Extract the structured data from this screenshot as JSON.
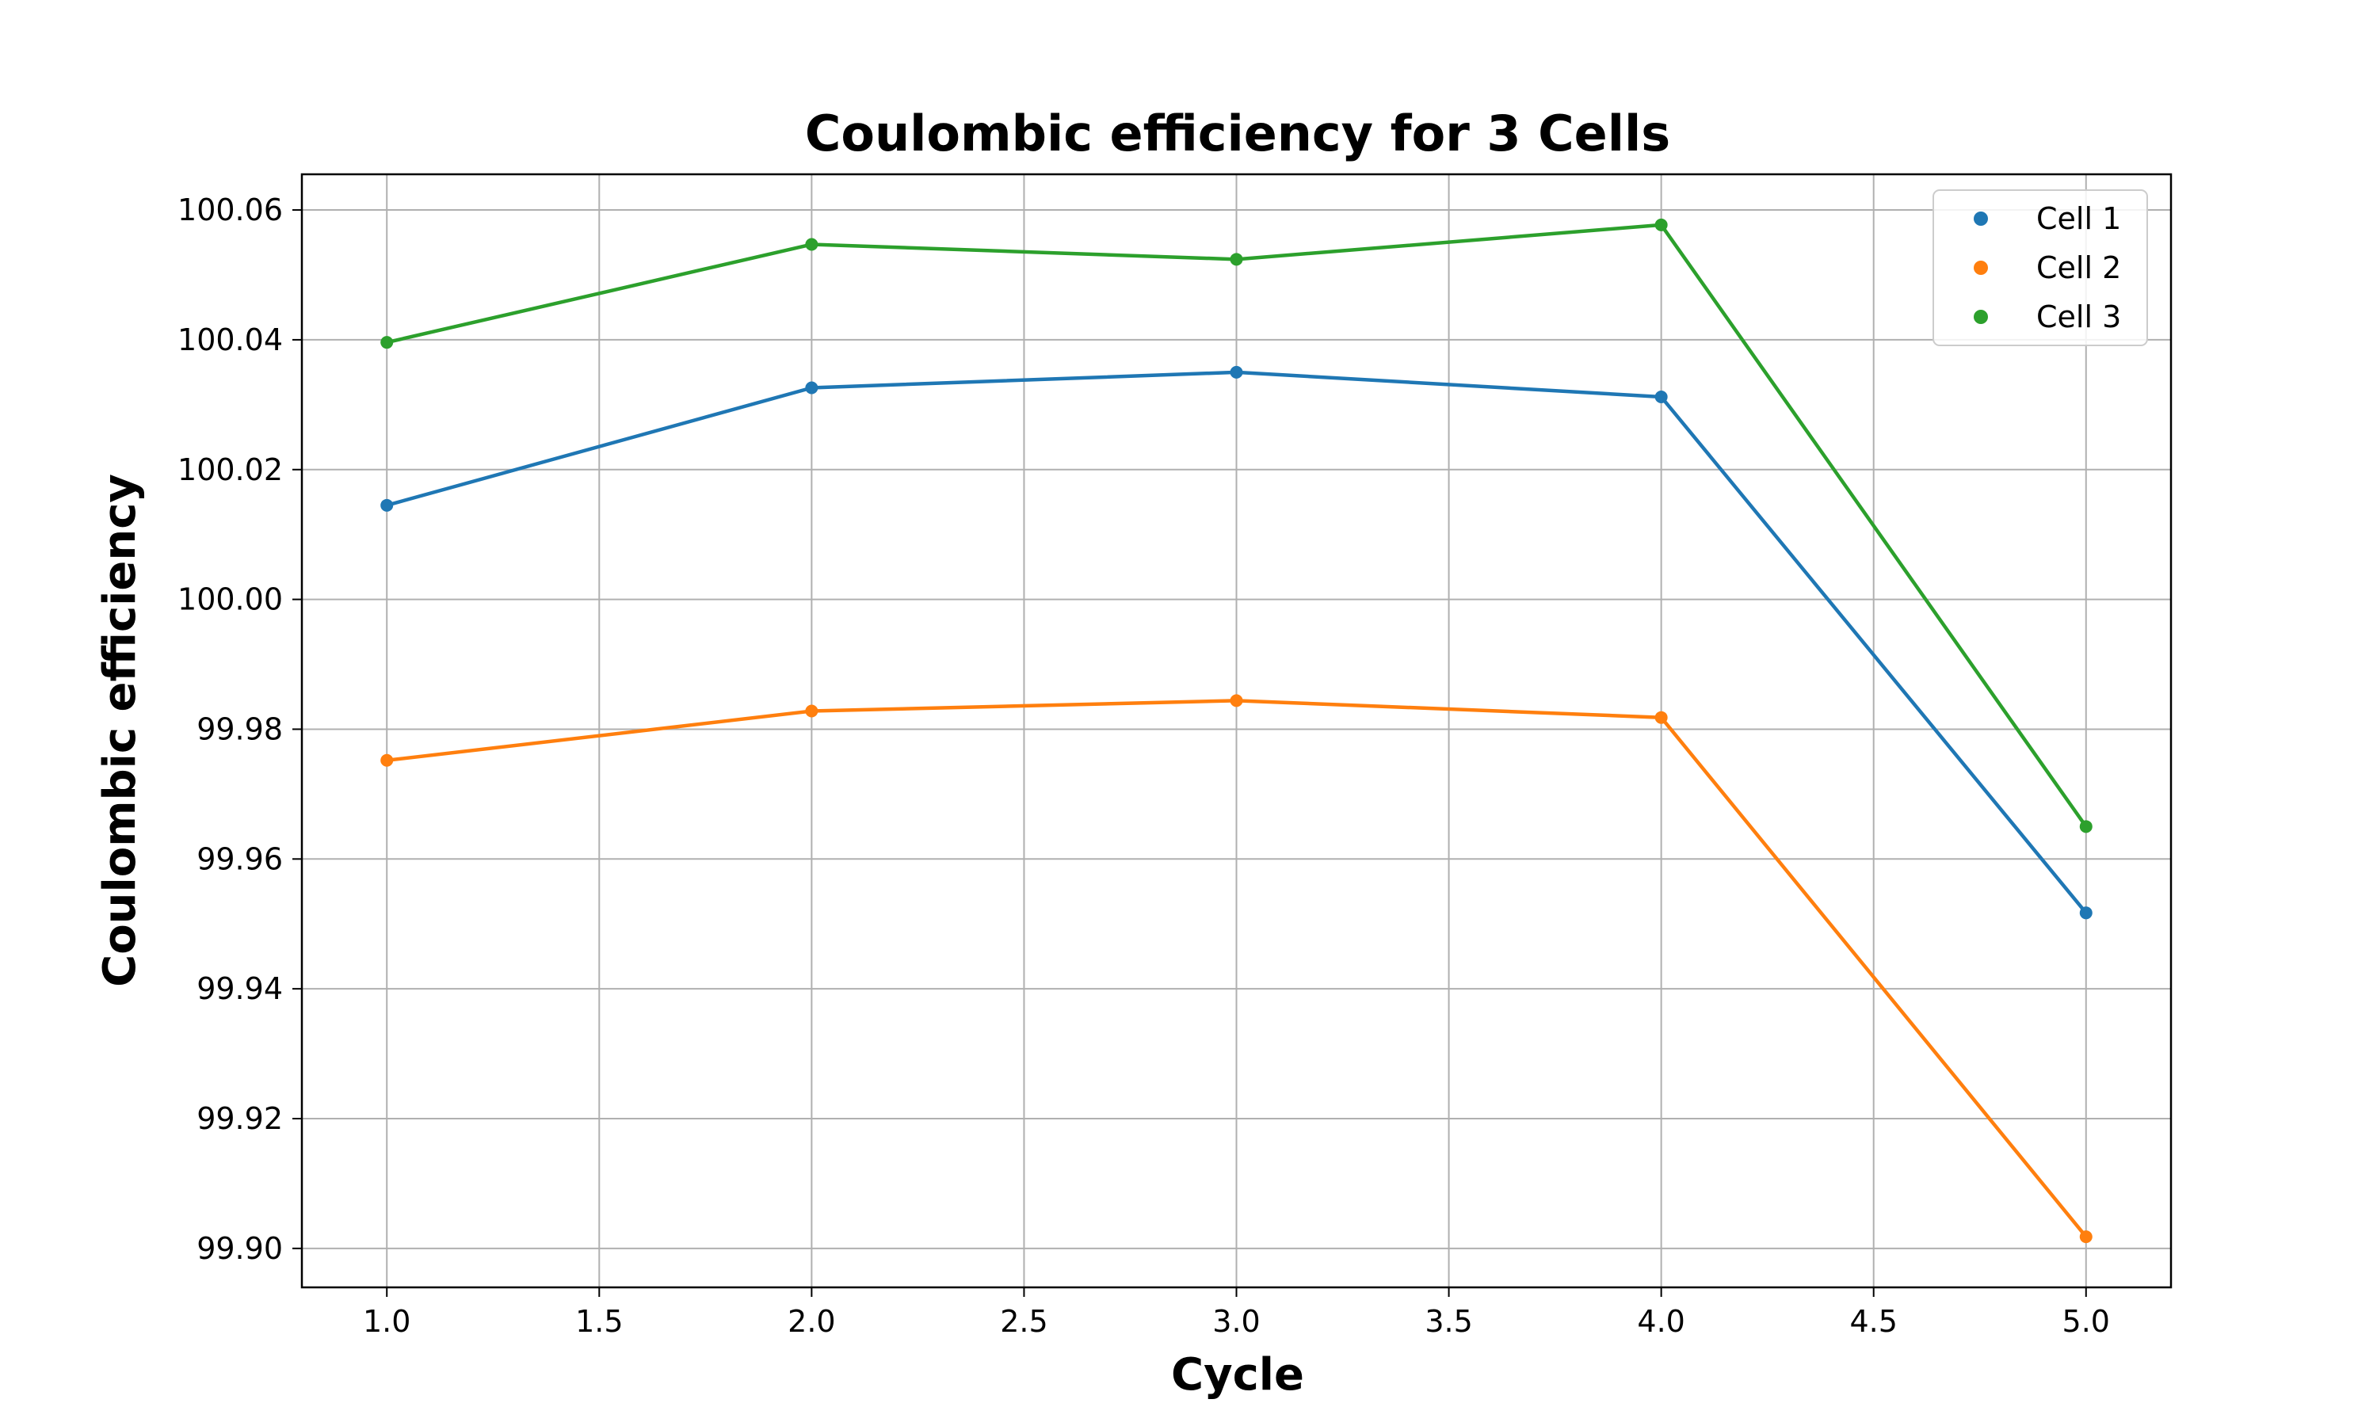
{
  "chart_data": {
    "type": "line",
    "title": "Coulombic efficiency for 3 Cells",
    "xlabel": "Cycle",
    "ylabel": "Coulombic efficiency",
    "xlim": [
      0.8,
      5.2
    ],
    "ylim": [
      99.894,
      100.0655
    ],
    "xticks": [
      1.0,
      1.5,
      2.0,
      2.5,
      3.0,
      3.5,
      4.0,
      4.5,
      5.0
    ],
    "xtick_labels": [
      "1.0",
      "1.5",
      "2.0",
      "2.5",
      "3.0",
      "3.5",
      "4.0",
      "4.5",
      "5.0"
    ],
    "yticks": [
      99.9,
      99.92,
      99.94,
      99.96,
      99.98,
      100.0,
      100.02,
      100.04,
      100.06
    ],
    "ytick_labels": [
      "99.90",
      "99.92",
      "99.94",
      "99.96",
      "99.98",
      "100.00",
      "100.02",
      "100.04",
      "100.06"
    ],
    "grid": true,
    "legend_position": "top-right",
    "x": [
      1,
      2,
      3,
      4,
      5
    ],
    "series": [
      {
        "name": "Cell 1",
        "color": "#1f77b4",
        "values": [
          100.0145,
          100.0326,
          100.035,
          100.0312,
          99.9517
        ]
      },
      {
        "name": "Cell 2",
        "color": "#ff7f0e",
        "values": [
          99.9752,
          99.9828,
          99.9844,
          99.9818,
          99.9018
        ]
      },
      {
        "name": "Cell 3",
        "color": "#2ca02c",
        "values": [
          100.0396,
          100.0547,
          100.0524,
          100.0577,
          99.965
        ]
      }
    ]
  }
}
